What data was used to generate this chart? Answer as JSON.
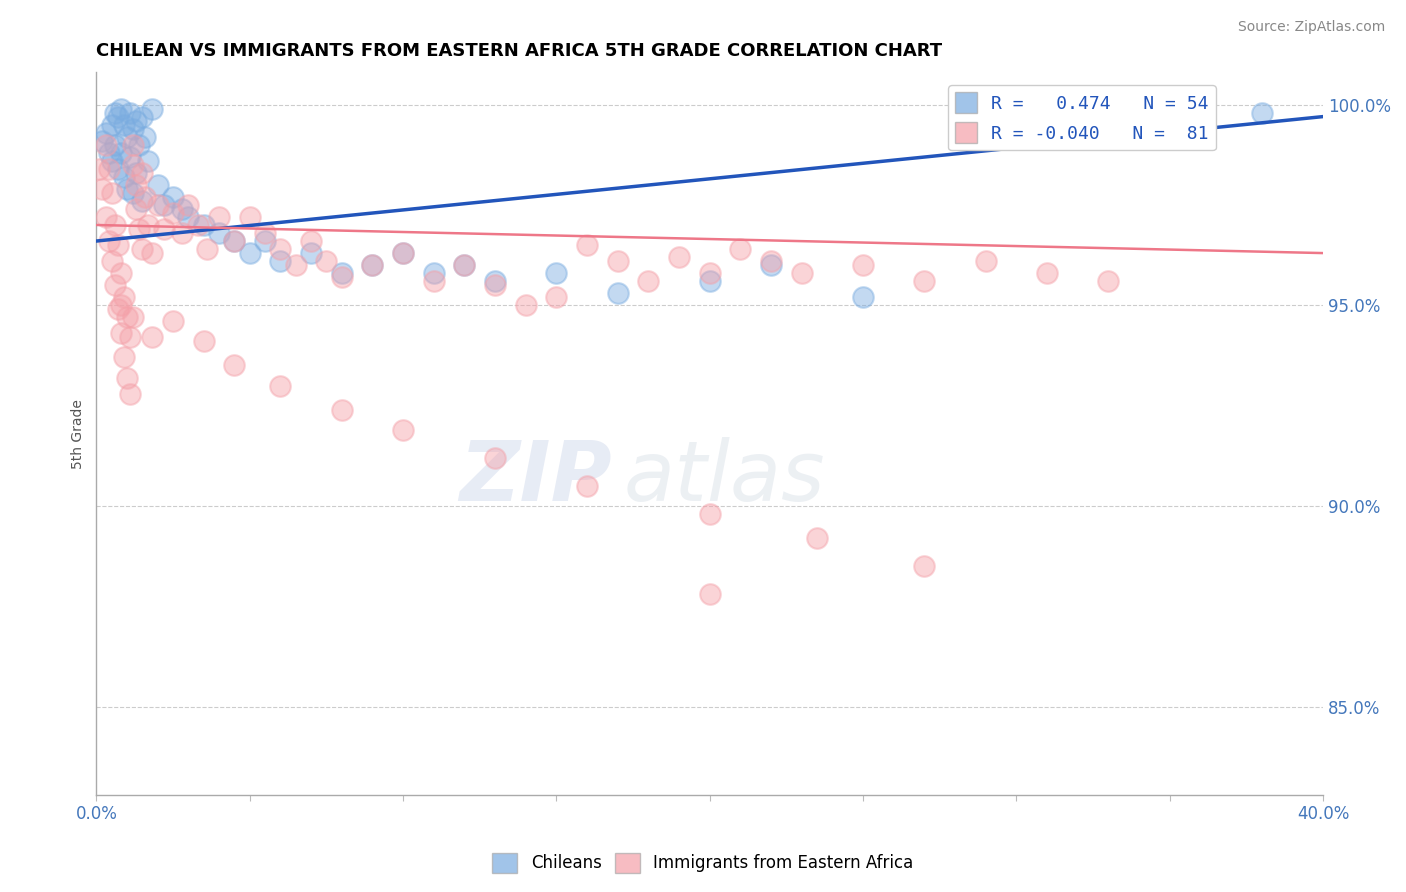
{
  "title": "CHILEAN VS IMMIGRANTS FROM EASTERN AFRICA 5TH GRADE CORRELATION CHART",
  "source": "Source: ZipAtlas.com",
  "ylabel": "5th Grade",
  "xlim": [
    0.0,
    0.4
  ],
  "ylim": [
    0.828,
    1.008
  ],
  "xticks": [
    0.0,
    0.05,
    0.1,
    0.15,
    0.2,
    0.25,
    0.3,
    0.35,
    0.4
  ],
  "yticks_right": [
    0.85,
    0.9,
    0.95,
    1.0
  ],
  "yticklabels_right": [
    "85.0%",
    "90.0%",
    "95.0%",
    "100.0%"
  ],
  "blue_color": "#7AACE0",
  "pink_color": "#F4A0A8",
  "blue_line_color": "#2255BB",
  "pink_line_color": "#EE7788",
  "watermark_zip": "ZIP",
  "watermark_atlas": "atlas",
  "legend_blue_label": "R =   0.474   N = 54",
  "legend_pink_label": "R = -0.040   N =  81",
  "chileans_label": "Chileans",
  "immigrants_label": "Immigrants from Eastern Africa",
  "blue_x": [
    0.002,
    0.003,
    0.004,
    0.005,
    0.005,
    0.006,
    0.006,
    0.007,
    0.007,
    0.008,
    0.008,
    0.009,
    0.009,
    0.01,
    0.01,
    0.011,
    0.011,
    0.012,
    0.012,
    0.013,
    0.013,
    0.014,
    0.015,
    0.015,
    0.016,
    0.017,
    0.018,
    0.02,
    0.022,
    0.025,
    0.028,
    0.03,
    0.035,
    0.04,
    0.045,
    0.05,
    0.055,
    0.06,
    0.07,
    0.08,
    0.09,
    0.1,
    0.11,
    0.12,
    0.13,
    0.15,
    0.17,
    0.2,
    0.22,
    0.25,
    0.31,
    0.33,
    0.355,
    0.38
  ],
  "blue_y": [
    0.991,
    0.993,
    0.988,
    0.995,
    0.986,
    0.998,
    0.99,
    0.997,
    0.984,
    0.999,
    0.988,
    0.995,
    0.982,
    0.992,
    0.979,
    0.998,
    0.987,
    0.994,
    0.978,
    0.996,
    0.983,
    0.99,
    0.997,
    0.976,
    0.992,
    0.986,
    0.999,
    0.98,
    0.975,
    0.977,
    0.974,
    0.972,
    0.97,
    0.968,
    0.966,
    0.963,
    0.966,
    0.961,
    0.963,
    0.958,
    0.96,
    0.963,
    0.958,
    0.96,
    0.956,
    0.958,
    0.953,
    0.956,
    0.96,
    0.952,
    0.998,
    0.999,
    0.997,
    0.998
  ],
  "pink_x": [
    0.001,
    0.002,
    0.003,
    0.003,
    0.004,
    0.004,
    0.005,
    0.005,
    0.006,
    0.006,
    0.007,
    0.007,
    0.008,
    0.008,
    0.009,
    0.009,
    0.01,
    0.01,
    0.011,
    0.011,
    0.012,
    0.012,
    0.013,
    0.013,
    0.014,
    0.015,
    0.015,
    0.016,
    0.017,
    0.018,
    0.02,
    0.022,
    0.025,
    0.028,
    0.03,
    0.033,
    0.036,
    0.04,
    0.045,
    0.05,
    0.055,
    0.06,
    0.065,
    0.07,
    0.075,
    0.08,
    0.09,
    0.1,
    0.11,
    0.12,
    0.13,
    0.14,
    0.15,
    0.16,
    0.17,
    0.18,
    0.19,
    0.2,
    0.21,
    0.22,
    0.23,
    0.25,
    0.27,
    0.29,
    0.31,
    0.33,
    0.008,
    0.012,
    0.018,
    0.025,
    0.035,
    0.045,
    0.06,
    0.08,
    0.1,
    0.13,
    0.16,
    0.2,
    0.235,
    0.27,
    0.2
  ],
  "pink_y": [
    0.984,
    0.979,
    0.99,
    0.972,
    0.984,
    0.966,
    0.978,
    0.961,
    0.97,
    0.955,
    0.965,
    0.949,
    0.958,
    0.943,
    0.952,
    0.937,
    0.947,
    0.932,
    0.942,
    0.928,
    0.99,
    0.985,
    0.98,
    0.974,
    0.969,
    0.983,
    0.964,
    0.977,
    0.97,
    0.963,
    0.975,
    0.969,
    0.973,
    0.968,
    0.975,
    0.97,
    0.964,
    0.972,
    0.966,
    0.972,
    0.968,
    0.964,
    0.96,
    0.966,
    0.961,
    0.957,
    0.96,
    0.963,
    0.956,
    0.96,
    0.955,
    0.95,
    0.952,
    0.965,
    0.961,
    0.956,
    0.962,
    0.958,
    0.964,
    0.961,
    0.958,
    0.96,
    0.956,
    0.961,
    0.958,
    0.956,
    0.95,
    0.947,
    0.942,
    0.946,
    0.941,
    0.935,
    0.93,
    0.924,
    0.919,
    0.912,
    0.905,
    0.898,
    0.892,
    0.885,
    0.878
  ]
}
